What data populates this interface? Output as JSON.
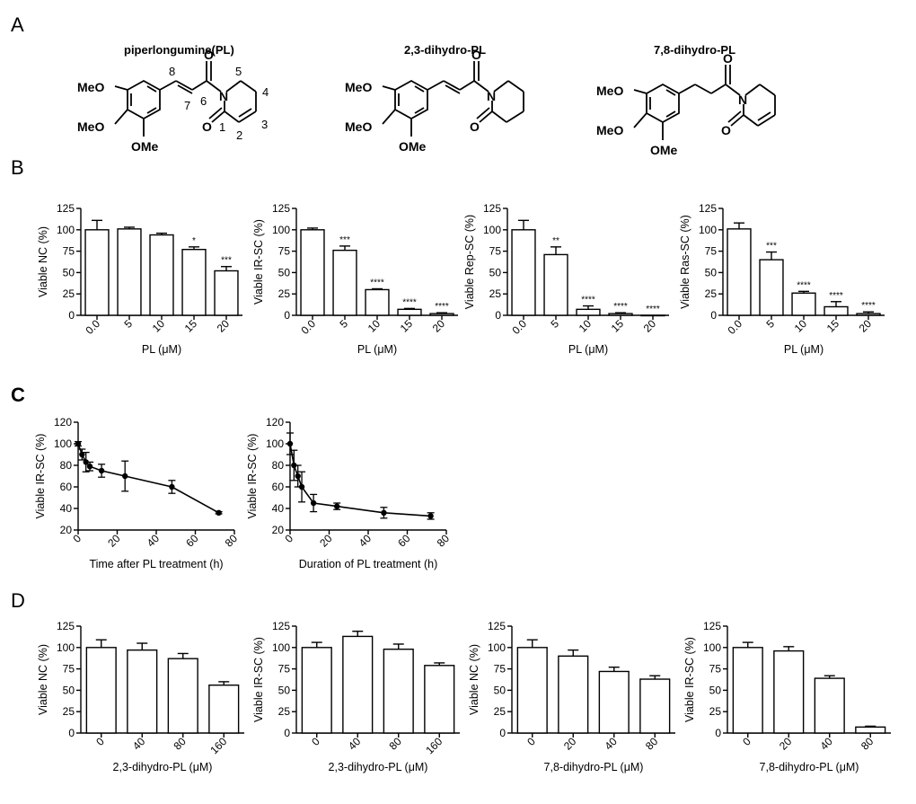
{
  "panels": {
    "A": "A",
    "B": "B",
    "C": "C",
    "D": "D"
  },
  "structures": [
    {
      "title": "piperlongumine(PL)",
      "labels": {
        "ome1": "MeO",
        "ome2": "MeO",
        "ome3": "OMe",
        "o_top": "O",
        "o_bot": "O",
        "n": "N",
        "n8": "8",
        "n7": "7",
        "n6": "6",
        "n5": "5",
        "n4": "4",
        "n3": "3",
        "n2": "2",
        "n1": "1"
      }
    },
    {
      "title": "2,3-dihydro-PL",
      "labels": {
        "ome1": "MeO",
        "ome2": "MeO",
        "ome3": "OMe",
        "o_top": "O",
        "o_bot": "O",
        "n": "N"
      }
    },
    {
      "title": "7,8-dihydro-PL",
      "labels": {
        "ome1": "MeO",
        "ome2": "MeO",
        "ome3": "OMe",
        "o_top": "O",
        "o_bot": "O",
        "n": "N"
      }
    }
  ],
  "chart_data": [
    {
      "id": "B1",
      "type": "bar",
      "categories": [
        "0.0",
        "5",
        "10",
        "15",
        "20"
      ],
      "values": [
        100,
        101,
        94,
        77,
        52
      ],
      "errors": [
        11,
        2,
        2,
        3,
        5
      ],
      "annotations": [
        "",
        "",
        "",
        "*",
        "***"
      ],
      "xlabel": "PL (μM)",
      "ylabel": "Viable NC (%)",
      "ylim": [
        0,
        125
      ],
      "yticks": [
        "0",
        "25",
        "50",
        "75",
        "100",
        "125"
      ],
      "rotate_ticks": true
    },
    {
      "id": "B2",
      "type": "bar",
      "categories": [
        "0.0",
        "5",
        "10",
        "15",
        "20"
      ],
      "values": [
        100,
        76,
        30,
        7,
        2
      ],
      "errors": [
        2,
        5,
        1,
        1,
        1
      ],
      "annotations": [
        "",
        "***",
        "****",
        "****",
        "****"
      ],
      "xlabel": "PL (μM)",
      "ylabel": "Viable IR-SC (%)",
      "ylim": [
        0,
        125
      ],
      "yticks": [
        "0",
        "25",
        "50",
        "75",
        "100",
        "125"
      ],
      "rotate_ticks": true
    },
    {
      "id": "B3",
      "type": "bar",
      "categories": [
        "0.0",
        "5",
        "10",
        "15",
        "20"
      ],
      "values": [
        100,
        71,
        7,
        2,
        0
      ],
      "errors": [
        11,
        9,
        4,
        1,
        0
      ],
      "annotations": [
        "",
        "**",
        "****",
        "****",
        "****"
      ],
      "xlabel": "PL (μM)",
      "ylabel": "Viable Rep-SC (%)",
      "ylim": [
        0,
        125
      ],
      "yticks": [
        "0",
        "25",
        "50",
        "75",
        "100",
        "125"
      ],
      "rotate_ticks": true
    },
    {
      "id": "B4",
      "type": "bar",
      "categories": [
        "0.0",
        "5",
        "10",
        "15",
        "20"
      ],
      "values": [
        101,
        65,
        26,
        10,
        2
      ],
      "errors": [
        7,
        9,
        2,
        6,
        2
      ],
      "annotations": [
        "",
        "***",
        "****",
        "****",
        "****"
      ],
      "xlabel": "PL (μM)",
      "ylabel": "Viable Ras-SC (%)",
      "ylim": [
        0,
        125
      ],
      "yticks": [
        "0",
        "25",
        "50",
        "75",
        "100",
        "125"
      ],
      "rotate_ticks": true
    },
    {
      "id": "C1",
      "type": "line",
      "x": [
        0,
        2,
        4,
        6,
        12,
        24,
        48,
        72
      ],
      "y": [
        100,
        90,
        83,
        79,
        75,
        70,
        60,
        36
      ],
      "errors": [
        2,
        5,
        9,
        4,
        6,
        14,
        6,
        1
      ],
      "xlabel": "Time after PL treatment (h)",
      "ylabel": "Viable IR-SC (%)",
      "xlim": [
        0,
        80
      ],
      "ylim": [
        20,
        120
      ],
      "xticks": [
        "0",
        "20",
        "40",
        "60",
        "80"
      ],
      "yticks": [
        "20",
        "40",
        "60",
        "80",
        "100",
        "120"
      ]
    },
    {
      "id": "C2",
      "type": "line",
      "x": [
        0,
        2,
        4,
        6,
        12,
        24,
        48,
        72
      ],
      "y": [
        100,
        80,
        70,
        60,
        45,
        42,
        36,
        33
      ],
      "errors": [
        10,
        14,
        10,
        14,
        8,
        3,
        5,
        3
      ],
      "xlabel": "Duration of PL treatment (h)",
      "ylabel": "Viable IR-SC (%)",
      "xlim": [
        0,
        80
      ],
      "ylim": [
        20,
        120
      ],
      "xticks": [
        "0",
        "20",
        "40",
        "60",
        "80"
      ],
      "yticks": [
        "20",
        "40",
        "60",
        "80",
        "100",
        "120"
      ]
    },
    {
      "id": "D1",
      "type": "bar",
      "categories": [
        "0",
        "40",
        "80",
        "160"
      ],
      "values": [
        100,
        97,
        87,
        56
      ],
      "errors": [
        9,
        8,
        6,
        4
      ],
      "xlabel": "2,3-dihydro-PL (μM)",
      "ylabel": "Viable NC (%)",
      "ylim": [
        0,
        125
      ],
      "yticks": [
        "0",
        "25",
        "50",
        "75",
        "100",
        "125"
      ],
      "rotate_ticks": true
    },
    {
      "id": "D2",
      "type": "bar",
      "categories": [
        "0",
        "40",
        "80",
        "160"
      ],
      "values": [
        100,
        113,
        98,
        79
      ],
      "errors": [
        6,
        6,
        6,
        3
      ],
      "xlabel": "2,3-dihydro-PL (μM)",
      "ylabel": "Viable IR-SC (%)",
      "ylim": [
        0,
        125
      ],
      "yticks": [
        "0",
        "25",
        "50",
        "75",
        "100",
        "125"
      ],
      "rotate_ticks": true
    },
    {
      "id": "D3",
      "type": "bar",
      "categories": [
        "0",
        "20",
        "40",
        "80"
      ],
      "values": [
        100,
        90,
        72,
        63
      ],
      "errors": [
        9,
        7,
        5,
        4
      ],
      "xlabel": "7,8-dihydro-PL (μM)",
      "ylabel": "Viable NC (%)",
      "ylim": [
        0,
        125
      ],
      "yticks": [
        "0",
        "25",
        "50",
        "75",
        "100",
        "125"
      ],
      "rotate_ticks": true
    },
    {
      "id": "D4",
      "type": "bar",
      "categories": [
        "0",
        "20",
        "40",
        "80"
      ],
      "values": [
        100,
        96,
        64,
        7
      ],
      "errors": [
        6,
        5,
        3,
        1
      ],
      "xlabel": "7,8-dihydro-PL (μM)",
      "ylabel": "Viable IR-SC (%)",
      "ylim": [
        0,
        125
      ],
      "yticks": [
        "0",
        "25",
        "50",
        "75",
        "100",
        "125"
      ],
      "rotate_ticks": true
    }
  ]
}
